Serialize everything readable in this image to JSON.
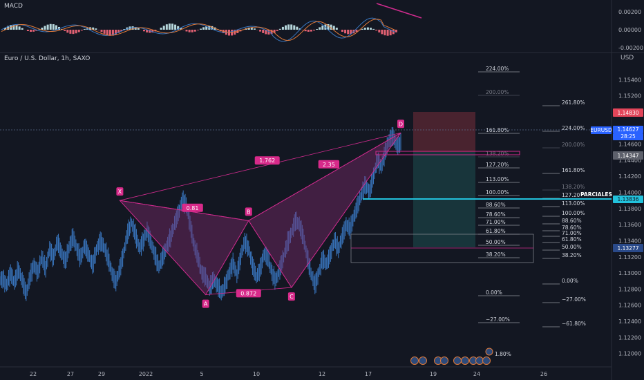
{
  "header": {
    "macd_label": "MACD",
    "symbol_label": "Euro / U.S. Dollar, 1h, SAXO",
    "usd_label": "USD"
  },
  "macd_axis": [
    "0.00200",
    "0.00000",
    "-0.00200"
  ],
  "colors": {
    "bg": "#131722",
    "candle": "#3a78c2",
    "pattern": "#d02b8e",
    "pattern_fill": "#7a2a6a",
    "cyan": "#22c2dc",
    "stop": "#b03a48",
    "target": "#1f5a5c",
    "label_bg": "#d82a8a"
  },
  "chart_data": {
    "type": "candlestick",
    "symbol": "EURUSD",
    "timeframe": "1h",
    "price_axis": [
      "1.15400",
      "1.15200",
      "1.15000",
      "1.14800",
      "1.14600",
      "1.14400",
      "1.14200",
      "1.14000",
      "1.13800",
      "1.13600",
      "1.13400",
      "1.13200",
      "1.13000",
      "1.12800",
      "1.12600",
      "1.12400",
      "1.12200",
      "1.12000"
    ],
    "y_range": [
      1.1192,
      1.156
    ],
    "time_axis": [
      "22",
      "27",
      "29",
      "2022",
      "5",
      "10",
      "12",
      "17",
      "19",
      "24",
      "26"
    ],
    "close_path": [
      1.1292,
      1.1285,
      1.13,
      1.1288,
      1.1305,
      1.129,
      1.1275,
      1.1295,
      1.131,
      1.13,
      1.132,
      1.1305,
      1.133,
      1.1318,
      1.134,
      1.1325,
      1.1315,
      1.1332,
      1.1345,
      1.133,
      1.1318,
      1.1335,
      1.1322,
      1.131,
      1.1328,
      1.134,
      1.1332,
      1.1318,
      1.13,
      1.1288,
      1.1305,
      1.1325,
      1.135,
      1.1362,
      1.1348,
      1.133,
      1.134,
      1.1352,
      1.1338,
      1.1322,
      1.1308,
      1.132,
      1.1332,
      1.1345,
      1.136,
      1.1375,
      1.139,
      1.1385,
      1.136,
      1.1335,
      1.132,
      1.13,
      1.1295,
      1.1282,
      1.1292,
      1.1285,
      1.1275,
      1.1285,
      1.13,
      1.1312,
      1.1298,
      1.132,
      1.134,
      1.133,
      1.131,
      1.1295,
      1.1305,
      1.1325,
      1.1318,
      1.13,
      1.129,
      1.1305,
      1.132,
      1.1338,
      1.135,
      1.1365,
      1.136,
      1.1345,
      1.132,
      1.13,
      1.1285,
      1.13,
      1.1318,
      1.131,
      1.1325,
      1.134,
      1.133,
      1.1345,
      1.136,
      1.1355,
      1.137,
      1.1385,
      1.1398,
      1.141,
      1.14,
      1.142,
      1.144,
      1.1432,
      1.145,
      1.1465,
      1.147,
      1.1458,
      1.1462
    ],
    "harmonic_points": [
      {
        "label": "X",
        "index": 30,
        "price": 1.139
      },
      {
        "label": "A",
        "index": 52,
        "price": 1.1273
      },
      {
        "label": "B",
        "index": 63,
        "price": 1.1365
      },
      {
        "label": "C",
        "index": 74,
        "price": 1.1282
      },
      {
        "label": "D",
        "index": 102,
        "price": 1.1474
      }
    ],
    "ratios": [
      "0.81",
      "0.872",
      "1.762",
      "2.35"
    ],
    "fib_left": [
      "224.00%",
      "200.00%",
      "161.80%",
      "138.20%",
      "127.20%",
      "113.00%",
      "100.00%",
      "88.60%",
      "78.60%",
      "71.00%",
      "61.80%",
      "50.00%",
      "38.20%",
      "0.00%",
      "−27.00%"
    ],
    "fib_right": [
      "261.80%",
      "224.00%",
      "200.00%",
      "161.80%",
      "138.20%",
      "127.20%",
      "113.00%",
      "100.00%",
      "88.60%",
      "78.60%",
      "71.00%",
      "61.80%",
      "50.00%",
      "38.20%",
      "0.00%",
      "−27.00%",
      "−61.80%"
    ],
    "price_tags": [
      {
        "label": "1.14830",
        "kind": "stop"
      },
      {
        "label": "EURUSD",
        "kind": "symbol"
      },
      {
        "label": "1.14627",
        "kind": "last"
      },
      {
        "label": "28:25",
        "kind": "countdown"
      },
      {
        "label": "1.14347",
        "kind": "gray"
      },
      {
        "label": "PARCIALES",
        "kind": "note"
      },
      {
        "label": "1.13836",
        "kind": "cyan"
      },
      {
        "label": "1.13277",
        "kind": "blue"
      }
    ],
    "bottom_fib_label": "1.80%"
  }
}
